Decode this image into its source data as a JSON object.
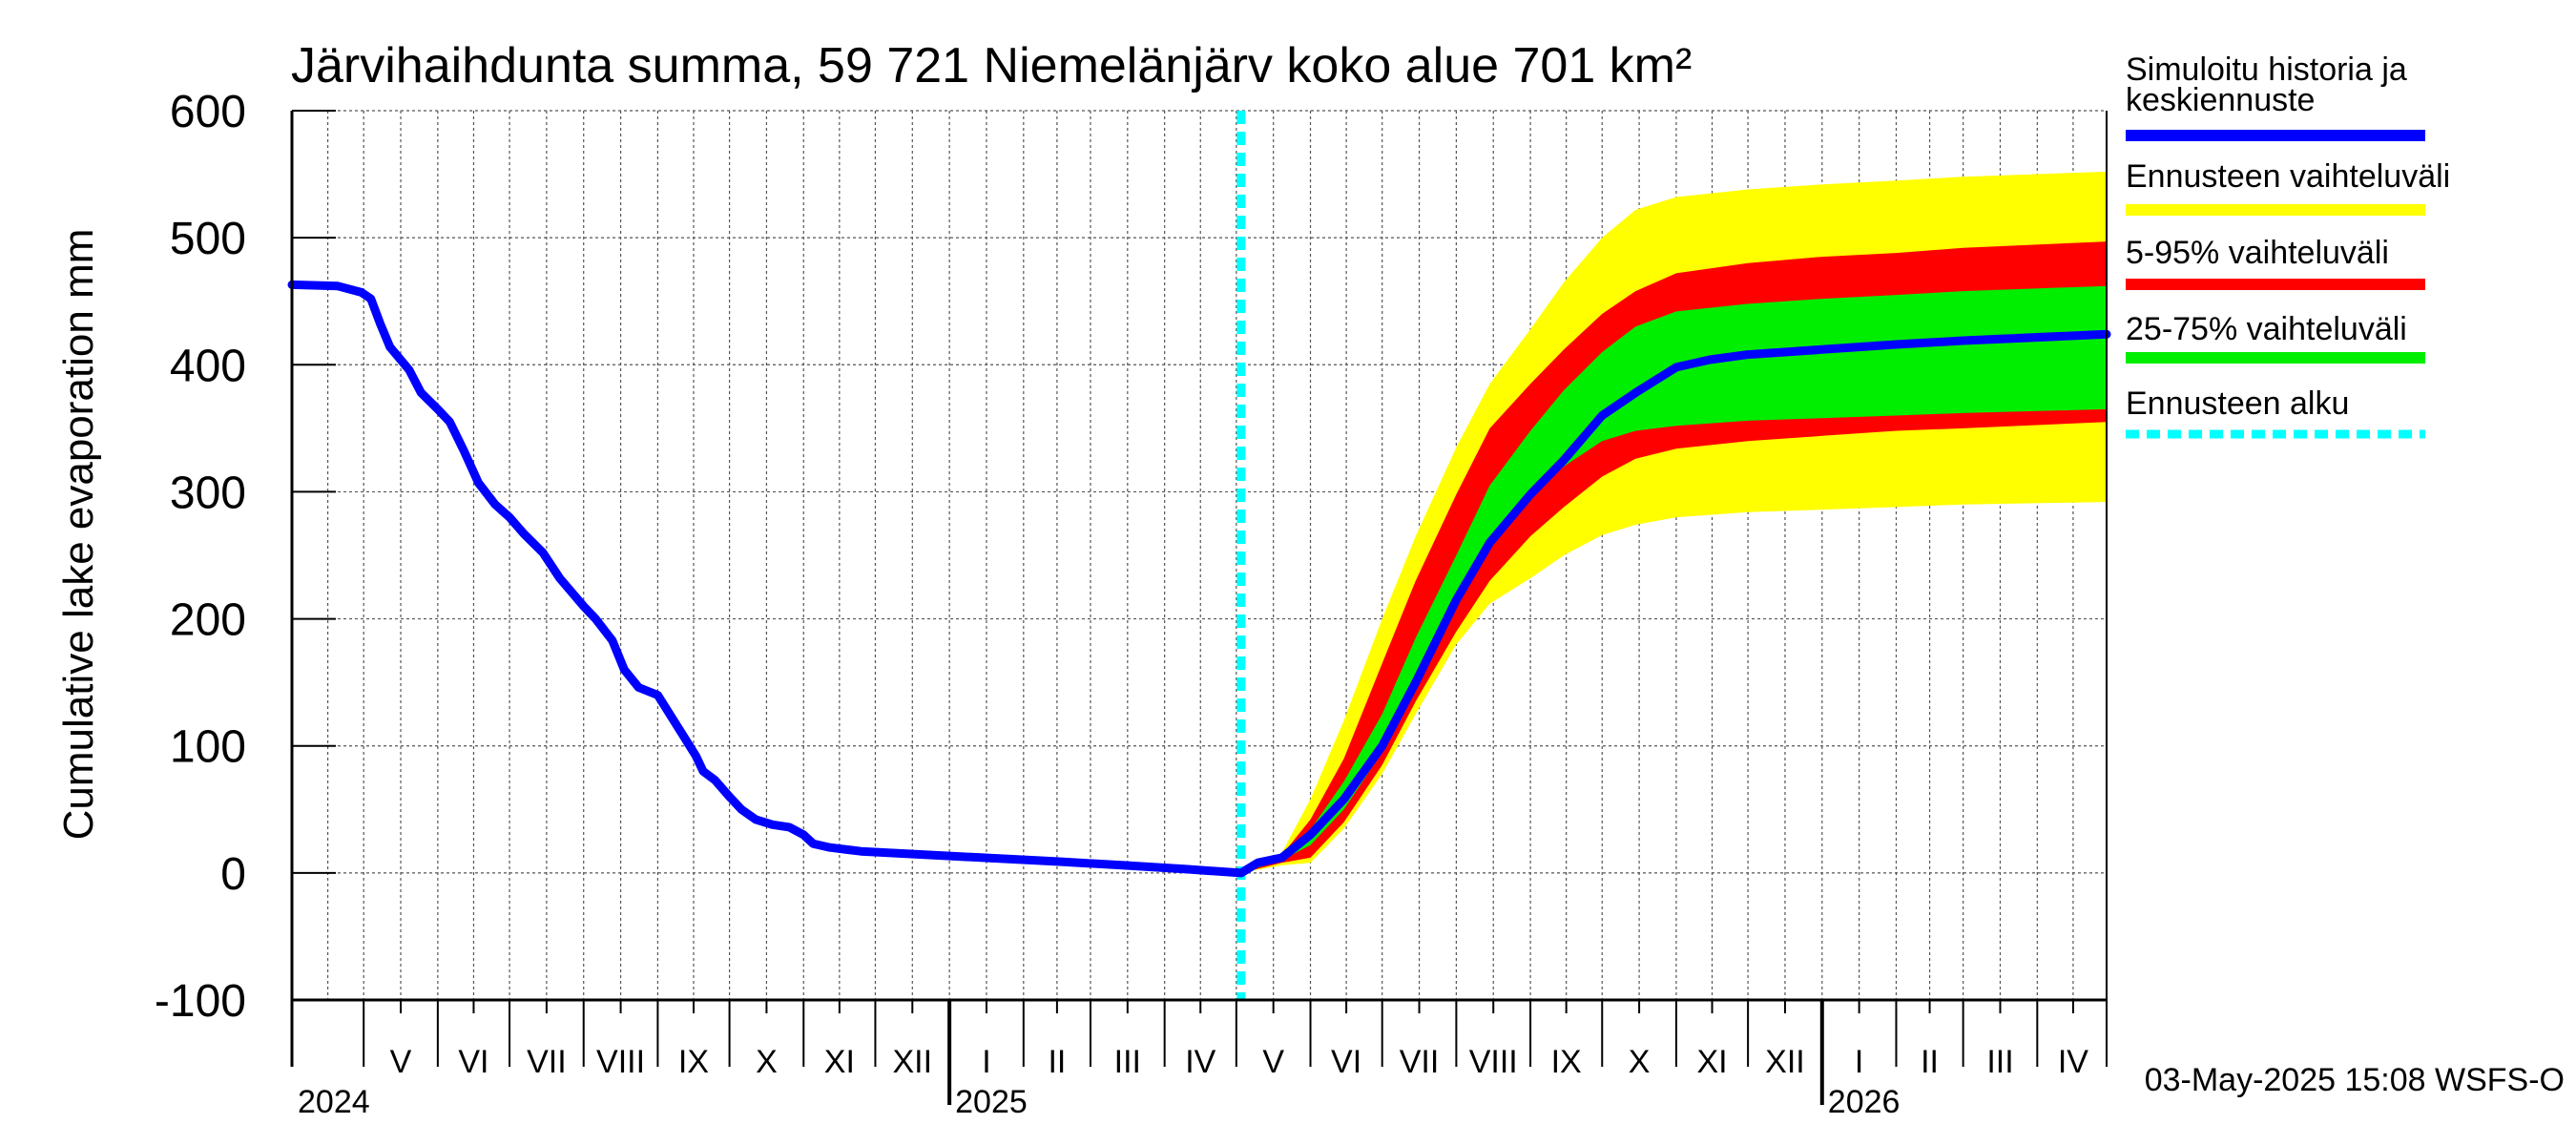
{
  "chart_data": {
    "type": "area",
    "title": "Järvihaihdunta summa, 59 721 Niemelänjärv koko alue 701 km²",
    "ylabel": "Cumulative lake evaporation   mm",
    "ylim": [
      -100,
      600
    ],
    "yticks": [
      600,
      500,
      400,
      300,
      200,
      100,
      0,
      -100
    ],
    "x_start": "2024-04-01",
    "x_end": "2026-04-30",
    "months": [
      {
        "label": "V",
        "start": "2024-05-01"
      },
      {
        "label": "VI",
        "start": "2024-06-01"
      },
      {
        "label": "VII",
        "start": "2024-07-01"
      },
      {
        "label": "VIII",
        "start": "2024-08-01"
      },
      {
        "label": "IX",
        "start": "2024-09-01"
      },
      {
        "label": "X",
        "start": "2024-10-01"
      },
      {
        "label": "XI",
        "start": "2024-11-01"
      },
      {
        "label": "XII",
        "start": "2024-12-01"
      },
      {
        "label": "I",
        "start": "2025-01-01"
      },
      {
        "label": "II",
        "start": "2025-02-01"
      },
      {
        "label": "III",
        "start": "2025-03-01"
      },
      {
        "label": "IV",
        "start": "2025-04-01"
      },
      {
        "label": "V",
        "start": "2025-05-01"
      },
      {
        "label": "VI",
        "start": "2025-06-01"
      },
      {
        "label": "VII",
        "start": "2025-07-01"
      },
      {
        "label": "VIII",
        "start": "2025-08-01"
      },
      {
        "label": "IX",
        "start": "2025-09-01"
      },
      {
        "label": "X",
        "start": "2025-10-01"
      },
      {
        "label": "XI",
        "start": "2025-11-01"
      },
      {
        "label": "XII",
        "start": "2025-12-01"
      },
      {
        "label": "I",
        "start": "2026-01-01"
      },
      {
        "label": "II",
        "start": "2026-02-01"
      },
      {
        "label": "III",
        "start": "2026-03-01"
      },
      {
        "label": "IV",
        "start": "2026-04-01"
      }
    ],
    "years": [
      {
        "label": "2024",
        "at": "2024-04-01"
      },
      {
        "label": "2025",
        "at": "2025-01-01"
      },
      {
        "label": "2026",
        "at": "2026-01-01"
      }
    ],
    "forecast_start": "2025-05-03",
    "series": [
      {
        "name": "Simuloitu historia ja keskiennuste",
        "color": "#0000ff",
        "points": [
          [
            "2024-04-01",
            463
          ],
          [
            "2024-04-20",
            462
          ],
          [
            "2024-04-30",
            457
          ],
          [
            "2024-05-04",
            452
          ],
          [
            "2024-05-08",
            432
          ],
          [
            "2024-05-12",
            414
          ],
          [
            "2024-05-20",
            396
          ],
          [
            "2024-05-25",
            378
          ],
          [
            "2024-06-01",
            365
          ],
          [
            "2024-06-06",
            355
          ],
          [
            "2024-06-12",
            332
          ],
          [
            "2024-06-18",
            307
          ],
          [
            "2024-06-25",
            290
          ],
          [
            "2024-07-01",
            280
          ],
          [
            "2024-07-07",
            267
          ],
          [
            "2024-07-15",
            252
          ],
          [
            "2024-07-22",
            232
          ],
          [
            "2024-08-01",
            210
          ],
          [
            "2024-08-06",
            200
          ],
          [
            "2024-08-13",
            183
          ],
          [
            "2024-08-18",
            160
          ],
          [
            "2024-08-24",
            146
          ],
          [
            "2024-09-01",
            140
          ],
          [
            "2024-09-05",
            128
          ],
          [
            "2024-09-11",
            110
          ],
          [
            "2024-09-17",
            92
          ],
          [
            "2024-09-20",
            80
          ],
          [
            "2024-09-25",
            73
          ],
          [
            "2024-10-01",
            60
          ],
          [
            "2024-10-06",
            50
          ],
          [
            "2024-10-12",
            42
          ],
          [
            "2024-10-19",
            38
          ],
          [
            "2024-10-26",
            36
          ],
          [
            "2024-11-01",
            30
          ],
          [
            "2024-11-05",
            23
          ],
          [
            "2024-11-12",
            20
          ],
          [
            "2024-11-25",
            17
          ],
          [
            "2024-12-15",
            15
          ],
          [
            "2025-01-15",
            12
          ],
          [
            "2025-02-15",
            9
          ],
          [
            "2025-03-15",
            6
          ],
          [
            "2025-04-10",
            3
          ],
          [
            "2025-05-03",
            0
          ],
          [
            "2025-05-10",
            8
          ],
          [
            "2025-05-20",
            12
          ],
          [
            "2025-06-01",
            30
          ],
          [
            "2025-06-15",
            58
          ],
          [
            "2025-07-01",
            100
          ],
          [
            "2025-07-15",
            150
          ],
          [
            "2025-08-01",
            215
          ],
          [
            "2025-08-15",
            260
          ],
          [
            "2025-09-01",
            298
          ],
          [
            "2025-09-15",
            325
          ],
          [
            "2025-10-01",
            360
          ],
          [
            "2025-10-15",
            378
          ],
          [
            "2025-11-01",
            398
          ],
          [
            "2025-11-15",
            404
          ],
          [
            "2025-12-01",
            408
          ],
          [
            "2026-01-01",
            412
          ],
          [
            "2026-02-01",
            416
          ],
          [
            "2026-03-01",
            419
          ],
          [
            "2026-04-30",
            424
          ]
        ]
      }
    ],
    "bands": [
      {
        "name": "Ennusteen vaihteluväli",
        "color": "#ffff00",
        "upper": [
          [
            "2025-05-03",
            0
          ],
          [
            "2025-05-20",
            16
          ],
          [
            "2025-06-01",
            58
          ],
          [
            "2025-06-15",
            120
          ],
          [
            "2025-07-01",
            200
          ],
          [
            "2025-07-15",
            265
          ],
          [
            "2025-08-01",
            335
          ],
          [
            "2025-08-15",
            385
          ],
          [
            "2025-09-01",
            428
          ],
          [
            "2025-09-15",
            465
          ],
          [
            "2025-10-01",
            500
          ],
          [
            "2025-10-15",
            522
          ],
          [
            "2025-11-01",
            532
          ],
          [
            "2025-12-01",
            538
          ],
          [
            "2026-01-01",
            542
          ],
          [
            "2026-02-01",
            545
          ],
          [
            "2026-03-01",
            548
          ],
          [
            "2026-04-30",
            552
          ]
        ],
        "lower": [
          [
            "2025-05-03",
            0
          ],
          [
            "2025-05-20",
            6
          ],
          [
            "2025-06-01",
            8
          ],
          [
            "2025-06-15",
            35
          ],
          [
            "2025-07-01",
            78
          ],
          [
            "2025-07-15",
            125
          ],
          [
            "2025-08-01",
            180
          ],
          [
            "2025-08-15",
            212
          ],
          [
            "2025-09-01",
            232
          ],
          [
            "2025-09-15",
            250
          ],
          [
            "2025-10-01",
            266
          ],
          [
            "2025-10-15",
            274
          ],
          [
            "2025-11-01",
            280
          ],
          [
            "2025-12-01",
            284
          ],
          [
            "2026-01-01",
            286
          ],
          [
            "2026-02-01",
            288
          ],
          [
            "2026-03-01",
            290
          ],
          [
            "2026-04-30",
            292
          ]
        ]
      },
      {
        "name": "5-95% vaihteluväli",
        "color": "#ff0000",
        "upper": [
          [
            "2025-05-03",
            0
          ],
          [
            "2025-05-20",
            14
          ],
          [
            "2025-06-01",
            42
          ],
          [
            "2025-06-15",
            90
          ],
          [
            "2025-07-01",
            165
          ],
          [
            "2025-07-15",
            230
          ],
          [
            "2025-08-01",
            298
          ],
          [
            "2025-08-15",
            350
          ],
          [
            "2025-09-01",
            385
          ],
          [
            "2025-09-15",
            412
          ],
          [
            "2025-10-01",
            440
          ],
          [
            "2025-10-15",
            458
          ],
          [
            "2025-11-01",
            472
          ],
          [
            "2025-12-01",
            480
          ],
          [
            "2026-01-01",
            485
          ],
          [
            "2026-02-01",
            488
          ],
          [
            "2026-03-01",
            492
          ],
          [
            "2026-04-30",
            497
          ]
        ],
        "lower": [
          [
            "2025-05-03",
            0
          ],
          [
            "2025-05-20",
            8
          ],
          [
            "2025-06-01",
            12
          ],
          [
            "2025-06-15",
            40
          ],
          [
            "2025-07-01",
            85
          ],
          [
            "2025-07-15",
            135
          ],
          [
            "2025-08-01",
            190
          ],
          [
            "2025-08-15",
            230
          ],
          [
            "2025-09-01",
            265
          ],
          [
            "2025-09-15",
            288
          ],
          [
            "2025-10-01",
            312
          ],
          [
            "2025-10-15",
            326
          ],
          [
            "2025-11-01",
            334
          ],
          [
            "2025-12-01",
            340
          ],
          [
            "2026-01-01",
            344
          ],
          [
            "2026-02-01",
            348
          ],
          [
            "2026-03-01",
            350
          ],
          [
            "2026-04-30",
            355
          ]
        ]
      },
      {
        "name": "25-75% vaihteluväli",
        "color": "#00ee00",
        "upper": [
          [
            "2025-05-03",
            0
          ],
          [
            "2025-05-20",
            12
          ],
          [
            "2025-06-01",
            34
          ],
          [
            "2025-06-15",
            72
          ],
          [
            "2025-07-01",
            125
          ],
          [
            "2025-07-15",
            185
          ],
          [
            "2025-08-01",
            250
          ],
          [
            "2025-08-15",
            305
          ],
          [
            "2025-09-01",
            348
          ],
          [
            "2025-09-15",
            380
          ],
          [
            "2025-10-01",
            410
          ],
          [
            "2025-10-15",
            430
          ],
          [
            "2025-11-01",
            442
          ],
          [
            "2025-12-01",
            448
          ],
          [
            "2026-01-01",
            452
          ],
          [
            "2026-02-01",
            455
          ],
          [
            "2026-03-01",
            458
          ],
          [
            "2026-04-30",
            462
          ]
        ],
        "lower": [
          [
            "2025-05-03",
            0
          ],
          [
            "2025-05-20",
            10
          ],
          [
            "2025-06-01",
            22
          ],
          [
            "2025-06-15",
            50
          ],
          [
            "2025-07-01",
            95
          ],
          [
            "2025-07-15",
            150
          ],
          [
            "2025-08-01",
            212
          ],
          [
            "2025-08-15",
            258
          ],
          [
            "2025-09-01",
            295
          ],
          [
            "2025-09-15",
            320
          ],
          [
            "2025-10-01",
            340
          ],
          [
            "2025-10-15",
            348
          ],
          [
            "2025-11-01",
            352
          ],
          [
            "2025-12-01",
            356
          ],
          [
            "2026-01-01",
            358
          ],
          [
            "2026-02-01",
            360
          ],
          [
            "2026-03-01",
            362
          ],
          [
            "2026-04-30",
            365
          ]
        ]
      }
    ]
  },
  "legend": [
    {
      "label": "Simuloitu historia ja keskiennuste",
      "color": "#0000ff",
      "style": "solid"
    },
    {
      "label": "Ennusteen vaihteluväli",
      "color": "#ffff00",
      "style": "solid"
    },
    {
      "label": "5-95% vaihteluväli",
      "color": "#ff0000",
      "style": "solid"
    },
    {
      "label": "25-75% vaihteluväli",
      "color": "#00ee00",
      "style": "solid"
    },
    {
      "label": "Ennusteen alku",
      "color": "#00ffff",
      "style": "dashed"
    }
  ],
  "footer": "03-May-2025 15:08 WSFS-O"
}
